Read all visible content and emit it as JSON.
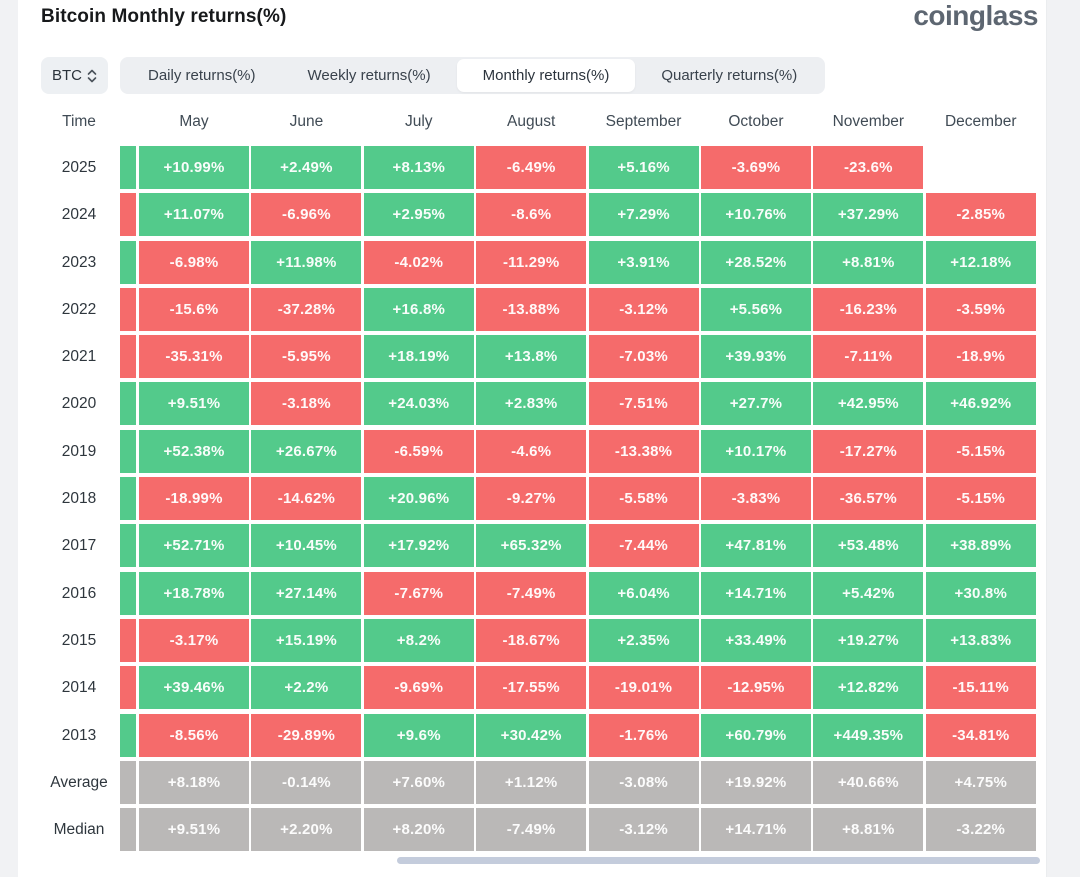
{
  "header": {
    "title": "Bitcoin Monthly returns(%)",
    "logo": "coinglass"
  },
  "controls": {
    "coin_selector": {
      "value": "BTC"
    },
    "tabs": [
      {
        "label": "Daily returns(%)",
        "selected": false
      },
      {
        "label": "Weekly returns(%)",
        "selected": false
      },
      {
        "label": "Monthly returns(%)",
        "selected": true
      },
      {
        "label": "Quarterly returns(%)",
        "selected": false
      }
    ]
  },
  "colors": {
    "positive": "#53ca8b",
    "negative": "#f56b6b",
    "neutral": "#bab8b7",
    "scrollbar": "#c4ccdc"
  },
  "table": {
    "columns": [
      "Time",
      "May",
      "June",
      "July",
      "August",
      "September",
      "October",
      "November",
      "December"
    ],
    "rows": [
      {
        "time": "2025",
        "edge": "green",
        "cells": [
          {
            "text": "+10.99%",
            "tone": "green"
          },
          {
            "text": "+2.49%",
            "tone": "green"
          },
          {
            "text": "+8.13%",
            "tone": "green"
          },
          {
            "text": "-6.49%",
            "tone": "red"
          },
          {
            "text": "+5.16%",
            "tone": "green"
          },
          {
            "text": "-3.69%",
            "tone": "red"
          },
          {
            "text": "-23.6%",
            "tone": "red"
          },
          {
            "text": "",
            "tone": "empty"
          }
        ]
      },
      {
        "time": "2024",
        "edge": "red",
        "cells": [
          {
            "text": "+11.07%",
            "tone": "green"
          },
          {
            "text": "-6.96%",
            "tone": "red"
          },
          {
            "text": "+2.95%",
            "tone": "green"
          },
          {
            "text": "-8.6%",
            "tone": "red"
          },
          {
            "text": "+7.29%",
            "tone": "green"
          },
          {
            "text": "+10.76%",
            "tone": "green"
          },
          {
            "text": "+37.29%",
            "tone": "green"
          },
          {
            "text": "-2.85%",
            "tone": "red"
          }
        ]
      },
      {
        "time": "2023",
        "edge": "green",
        "cells": [
          {
            "text": "-6.98%",
            "tone": "red"
          },
          {
            "text": "+11.98%",
            "tone": "green"
          },
          {
            "text": "-4.02%",
            "tone": "red"
          },
          {
            "text": "-11.29%",
            "tone": "red"
          },
          {
            "text": "+3.91%",
            "tone": "green"
          },
          {
            "text": "+28.52%",
            "tone": "green"
          },
          {
            "text": "+8.81%",
            "tone": "green"
          },
          {
            "text": "+12.18%",
            "tone": "green"
          }
        ]
      },
      {
        "time": "2022",
        "edge": "red",
        "cells": [
          {
            "text": "-15.6%",
            "tone": "red"
          },
          {
            "text": "-37.28%",
            "tone": "red"
          },
          {
            "text": "+16.8%",
            "tone": "green"
          },
          {
            "text": "-13.88%",
            "tone": "red"
          },
          {
            "text": "-3.12%",
            "tone": "red"
          },
          {
            "text": "+5.56%",
            "tone": "green"
          },
          {
            "text": "-16.23%",
            "tone": "red"
          },
          {
            "text": "-3.59%",
            "tone": "red"
          }
        ]
      },
      {
        "time": "2021",
        "edge": "red",
        "cells": [
          {
            "text": "-35.31%",
            "tone": "red"
          },
          {
            "text": "-5.95%",
            "tone": "red"
          },
          {
            "text": "+18.19%",
            "tone": "green"
          },
          {
            "text": "+13.8%",
            "tone": "green"
          },
          {
            "text": "-7.03%",
            "tone": "red"
          },
          {
            "text": "+39.93%",
            "tone": "green"
          },
          {
            "text": "-7.11%",
            "tone": "red"
          },
          {
            "text": "-18.9%",
            "tone": "red"
          }
        ]
      },
      {
        "time": "2020",
        "edge": "green",
        "cells": [
          {
            "text": "+9.51%",
            "tone": "green"
          },
          {
            "text": "-3.18%",
            "tone": "red"
          },
          {
            "text": "+24.03%",
            "tone": "green"
          },
          {
            "text": "+2.83%",
            "tone": "green"
          },
          {
            "text": "-7.51%",
            "tone": "red"
          },
          {
            "text": "+27.7%",
            "tone": "green"
          },
          {
            "text": "+42.95%",
            "tone": "green"
          },
          {
            "text": "+46.92%",
            "tone": "green"
          }
        ]
      },
      {
        "time": "2019",
        "edge": "green",
        "cells": [
          {
            "text": "+52.38%",
            "tone": "green"
          },
          {
            "text": "+26.67%",
            "tone": "green"
          },
          {
            "text": "-6.59%",
            "tone": "red"
          },
          {
            "text": "-4.6%",
            "tone": "red"
          },
          {
            "text": "-13.38%",
            "tone": "red"
          },
          {
            "text": "+10.17%",
            "tone": "green"
          },
          {
            "text": "-17.27%",
            "tone": "red"
          },
          {
            "text": "-5.15%",
            "tone": "red"
          }
        ]
      },
      {
        "time": "2018",
        "edge": "green",
        "cells": [
          {
            "text": "-18.99%",
            "tone": "red"
          },
          {
            "text": "-14.62%",
            "tone": "red"
          },
          {
            "text": "+20.96%",
            "tone": "green"
          },
          {
            "text": "-9.27%",
            "tone": "red"
          },
          {
            "text": "-5.58%",
            "tone": "red"
          },
          {
            "text": "-3.83%",
            "tone": "red"
          },
          {
            "text": "-36.57%",
            "tone": "red"
          },
          {
            "text": "-5.15%",
            "tone": "red"
          }
        ]
      },
      {
        "time": "2017",
        "edge": "green",
        "cells": [
          {
            "text": "+52.71%",
            "tone": "green"
          },
          {
            "text": "+10.45%",
            "tone": "green"
          },
          {
            "text": "+17.92%",
            "tone": "green"
          },
          {
            "text": "+65.32%",
            "tone": "green"
          },
          {
            "text": "-7.44%",
            "tone": "red"
          },
          {
            "text": "+47.81%",
            "tone": "green"
          },
          {
            "text": "+53.48%",
            "tone": "green"
          },
          {
            "text": "+38.89%",
            "tone": "green"
          }
        ]
      },
      {
        "time": "2016",
        "edge": "green",
        "cells": [
          {
            "text": "+18.78%",
            "tone": "green"
          },
          {
            "text": "+27.14%",
            "tone": "green"
          },
          {
            "text": "-7.67%",
            "tone": "red"
          },
          {
            "text": "-7.49%",
            "tone": "red"
          },
          {
            "text": "+6.04%",
            "tone": "green"
          },
          {
            "text": "+14.71%",
            "tone": "green"
          },
          {
            "text": "+5.42%",
            "tone": "green"
          },
          {
            "text": "+30.8%",
            "tone": "green"
          }
        ]
      },
      {
        "time": "2015",
        "edge": "red",
        "cells": [
          {
            "text": "-3.17%",
            "tone": "red"
          },
          {
            "text": "+15.19%",
            "tone": "green"
          },
          {
            "text": "+8.2%",
            "tone": "green"
          },
          {
            "text": "-18.67%",
            "tone": "red"
          },
          {
            "text": "+2.35%",
            "tone": "green"
          },
          {
            "text": "+33.49%",
            "tone": "green"
          },
          {
            "text": "+19.27%",
            "tone": "green"
          },
          {
            "text": "+13.83%",
            "tone": "green"
          }
        ]
      },
      {
        "time": "2014",
        "edge": "red",
        "cells": [
          {
            "text": "+39.46%",
            "tone": "green"
          },
          {
            "text": "+2.2%",
            "tone": "green"
          },
          {
            "text": "-9.69%",
            "tone": "red"
          },
          {
            "text": "-17.55%",
            "tone": "red"
          },
          {
            "text": "-19.01%",
            "tone": "red"
          },
          {
            "text": "-12.95%",
            "tone": "red"
          },
          {
            "text": "+12.82%",
            "tone": "green"
          },
          {
            "text": "-15.11%",
            "tone": "red"
          }
        ]
      },
      {
        "time": "2013",
        "edge": "green",
        "cells": [
          {
            "text": "-8.56%",
            "tone": "red"
          },
          {
            "text": "-29.89%",
            "tone": "red"
          },
          {
            "text": "+9.6%",
            "tone": "green"
          },
          {
            "text": "+30.42%",
            "tone": "green"
          },
          {
            "text": "-1.76%",
            "tone": "red"
          },
          {
            "text": "+60.79%",
            "tone": "green"
          },
          {
            "text": "+449.35%",
            "tone": "green"
          },
          {
            "text": "-34.81%",
            "tone": "red"
          }
        ]
      },
      {
        "time": "Average",
        "edge": "gray",
        "cells": [
          {
            "text": "+8.18%",
            "tone": "gray"
          },
          {
            "text": "-0.14%",
            "tone": "gray"
          },
          {
            "text": "+7.60%",
            "tone": "gray"
          },
          {
            "text": "+1.12%",
            "tone": "gray"
          },
          {
            "text": "-3.08%",
            "tone": "gray"
          },
          {
            "text": "+19.92%",
            "tone": "gray"
          },
          {
            "text": "+40.66%",
            "tone": "gray"
          },
          {
            "text": "+4.75%",
            "tone": "gray"
          }
        ]
      },
      {
        "time": "Median",
        "edge": "gray",
        "cells": [
          {
            "text": "+9.51%",
            "tone": "gray"
          },
          {
            "text": "+2.20%",
            "tone": "gray"
          },
          {
            "text": "+8.20%",
            "tone": "gray"
          },
          {
            "text": "-7.49%",
            "tone": "gray"
          },
          {
            "text": "-3.12%",
            "tone": "gray"
          },
          {
            "text": "+14.71%",
            "tone": "gray"
          },
          {
            "text": "+8.81%",
            "tone": "gray"
          },
          {
            "text": "-3.22%",
            "tone": "gray"
          }
        ]
      }
    ]
  }
}
